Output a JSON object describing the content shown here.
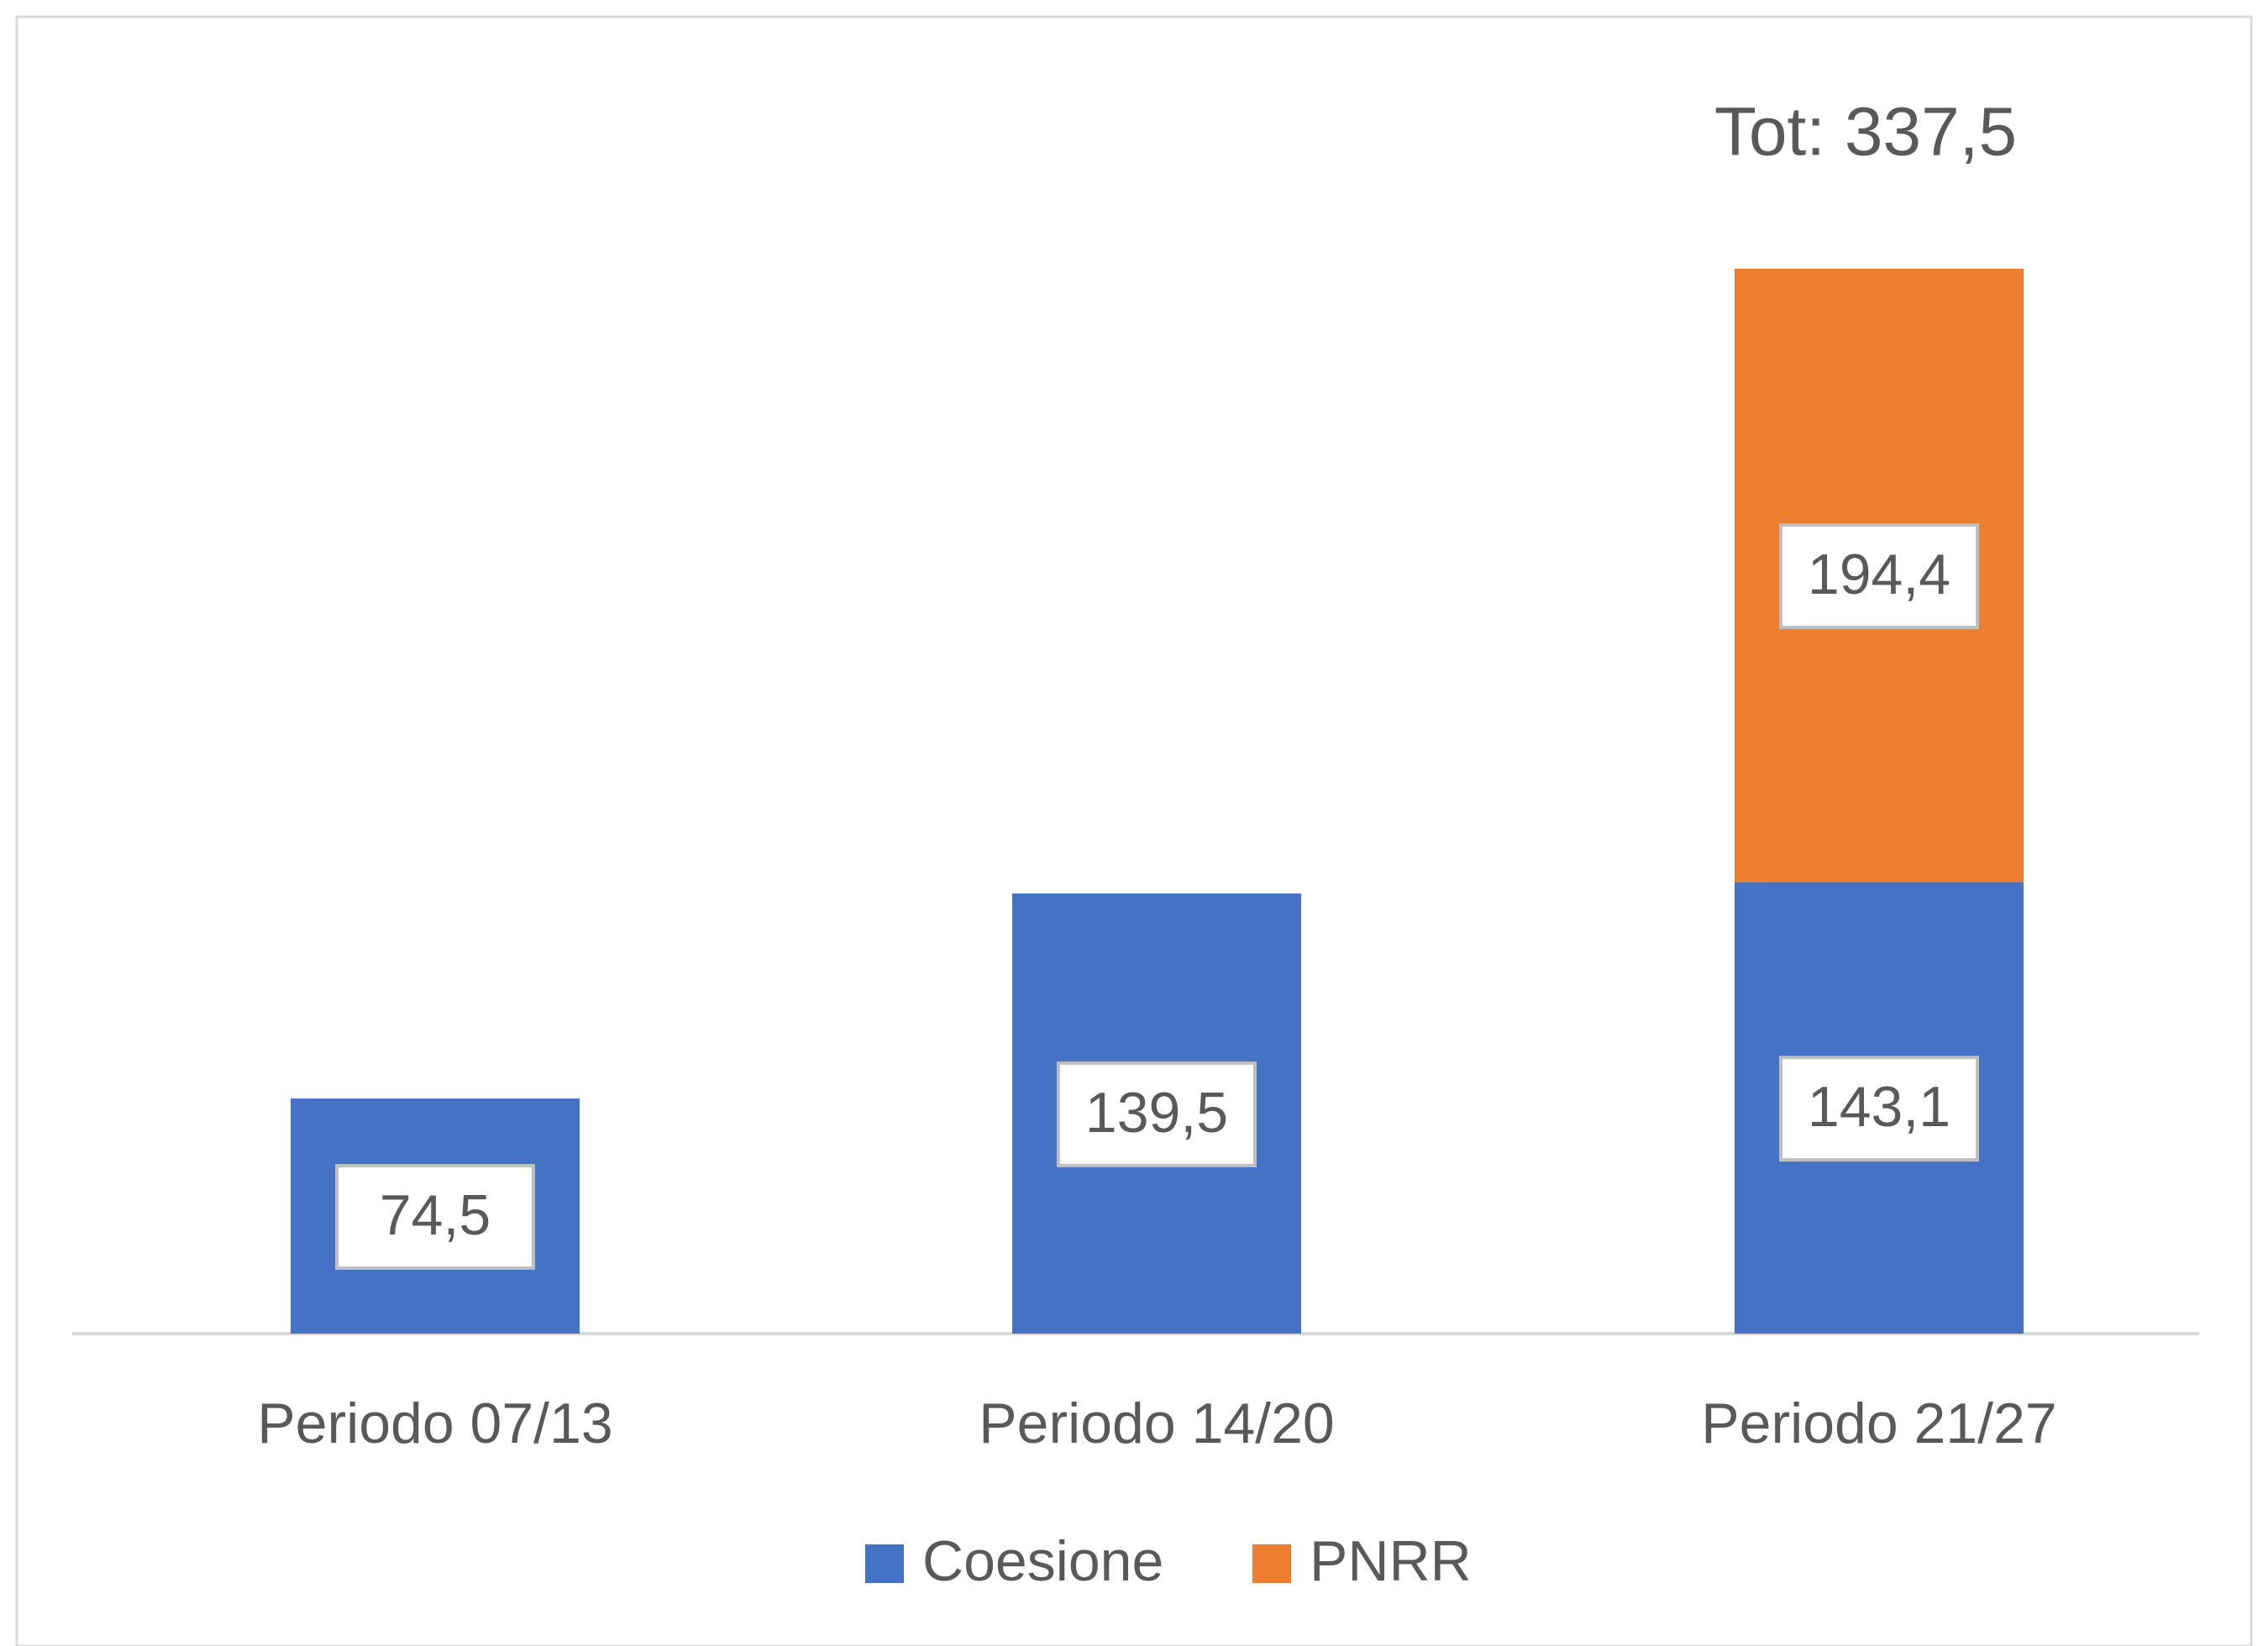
{
  "chart_data": {
    "type": "stacked-bar",
    "annotation": "Tot: 337,5",
    "categories": [
      "Periodo 07/13",
      "Periodo 14/20",
      "Periodo 21/27"
    ],
    "series": [
      {
        "name": "Coesione",
        "color": "#4472c4",
        "values": [
          74.5,
          139.5,
          143.1
        ],
        "value_labels": [
          "74,5",
          "139,5",
          "143,1"
        ]
      },
      {
        "name": "PNRR",
        "color": "#ed7d31",
        "values": [
          null,
          null,
          194.4
        ],
        "value_labels": [
          null,
          null,
          "194,4"
        ]
      }
    ],
    "legend": "bottom"
  }
}
